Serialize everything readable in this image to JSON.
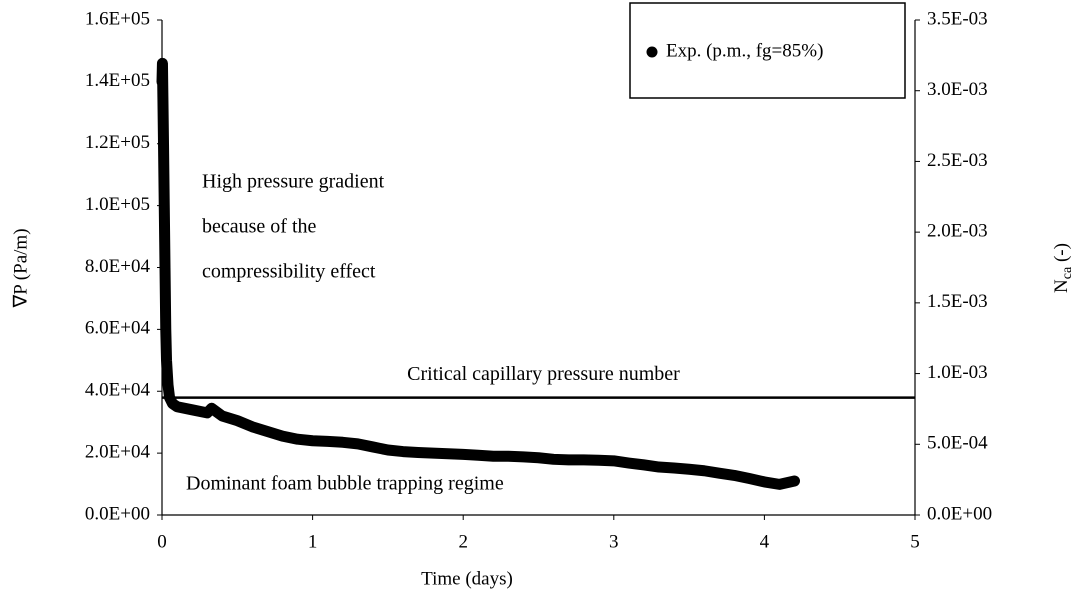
{
  "chart_data": {
    "type": "line",
    "xlabel": "Time (days)",
    "ylabel": "∇P (Pa/m)",
    "y2label": {
      "text": "N",
      "sub": "ca",
      "suffix": " (-)"
    },
    "xlim": [
      0,
      5
    ],
    "xticks": [
      0,
      1,
      2,
      3,
      4,
      5
    ],
    "ylim": [
      0,
      160000
    ],
    "yticks": [
      {
        "value": 0,
        "label": "0.0E+00"
      },
      {
        "value": 20000,
        "label": "2.0E+04"
      },
      {
        "value": 40000,
        "label": "4.0E+04"
      },
      {
        "value": 60000,
        "label": "6.0E+04"
      },
      {
        "value": 80000,
        "label": "8.0E+04"
      },
      {
        "value": 100000,
        "label": "1.0E+05"
      },
      {
        "value": 120000,
        "label": "1.2E+05"
      },
      {
        "value": 140000,
        "label": "1.4E+05"
      },
      {
        "value": 160000,
        "label": "1.6E+05"
      }
    ],
    "y2lim": [
      0,
      0.0035
    ],
    "y2ticks": [
      {
        "value": 0,
        "label": "0.0E+00"
      },
      {
        "value": 0.0005,
        "label": "5.0E-04"
      },
      {
        "value": 0.001,
        "label": "1.0E-03"
      },
      {
        "value": 0.0015,
        "label": "1.5E-03"
      },
      {
        "value": 0.002,
        "label": "2.0E-03"
      },
      {
        "value": 0.0025,
        "label": "2.5E-03"
      },
      {
        "value": 0.003,
        "label": "3.0E-03"
      },
      {
        "value": 0.0035,
        "label": "3.5E-03"
      }
    ],
    "legend": "top-right",
    "series": [
      {
        "name": "Exp. (p.m., fg=85%)",
        "color": "#000000",
        "x": [
          0,
          0.003,
          0.006,
          0.01,
          0.015,
          0.02,
          0.025,
          0.03,
          0.04,
          0.05,
          0.07,
          0.1,
          0.2,
          0.3,
          0.33,
          0.4,
          0.5,
          0.6,
          0.7,
          0.8,
          0.9,
          1.0,
          1.1,
          1.2,
          1.3,
          1.4,
          1.5,
          1.6,
          1.7,
          1.8,
          1.9,
          2.0,
          2.1,
          2.2,
          2.3,
          2.4,
          2.5,
          2.6,
          2.7,
          2.8,
          2.9,
          3.0,
          3.1,
          3.2,
          3.3,
          3.4,
          3.5,
          3.6,
          3.7,
          3.8,
          3.9,
          4.0,
          4.1,
          4.2
        ],
        "values": [
          140000,
          146000,
          135000,
          120000,
          100000,
          80000,
          60000,
          50000,
          42000,
          38000,
          36000,
          35000,
          34000,
          33000,
          34500,
          32000,
          30500,
          28500,
          27000,
          25500,
          24500,
          24000,
          23800,
          23500,
          23000,
          22000,
          21000,
          20500,
          20200,
          20000,
          19800,
          19600,
          19300,
          19000,
          19000,
          18800,
          18500,
          18000,
          17800,
          17800,
          17700,
          17500,
          16800,
          16200,
          15500,
          15200,
          14800,
          14300,
          13500,
          12800,
          11800,
          10700,
          9900,
          11000
        ]
      }
    ],
    "reference_line": {
      "label": "Critical capillary pressure number",
      "value": 0.00083,
      "axis": "y2",
      "color": "#000000"
    },
    "annotations": [
      {
        "lines": [
          "High pressure gradient",
          "because of the",
          "compressibility effect"
        ]
      },
      {
        "lines": [
          "Dominant foam bubble trapping regime"
        ]
      }
    ]
  }
}
